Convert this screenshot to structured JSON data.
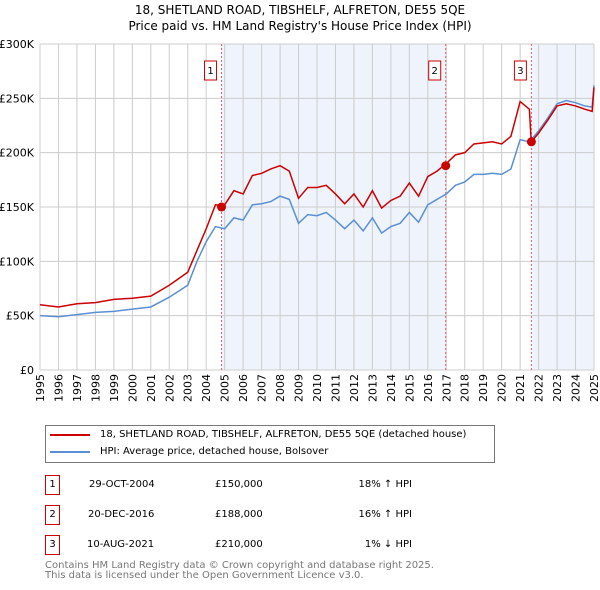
{
  "chart_data": {
    "type": "line",
    "title": "18, SHETLAND ROAD, TIBSHELF, ALFRETON, DE55 5QE",
    "subtitle": "Price paid vs. HM Land Registry's House Price Index (HPI)",
    "xlim": [
      1995,
      2025
    ],
    "ylim": [
      0,
      300000
    ],
    "yticks": [
      0,
      50000,
      100000,
      150000,
      200000,
      250000,
      300000
    ],
    "ytick_labels": [
      "£0",
      "£50K",
      "£100K",
      "£150K",
      "£200K",
      "£250K",
      "£300K"
    ],
    "xtick_labels": [
      "1995",
      "1996",
      "1997",
      "1998",
      "1999",
      "2000",
      "2001",
      "2002",
      "2003",
      "2004",
      "2005",
      "2006",
      "2007",
      "2008",
      "2009",
      "2010",
      "2011",
      "2012",
      "2013",
      "2014",
      "2015",
      "2016",
      "2017",
      "2018",
      "2019",
      "2020",
      "2021",
      "2022",
      "2023",
      "2024",
      "2025"
    ],
    "grid": true,
    "shaded_ranges": [
      [
        2004.83,
        2016.97
      ],
      [
        2021.61,
        2025
      ]
    ],
    "series": [
      {
        "name": "18, SHETLAND ROAD, TIBSHELF, ALFRETON, DE55 5QE (detached house)",
        "color": "#cc0000",
        "x": [
          1995,
          1996,
          1997,
          1998,
          1999,
          2000,
          2001,
          2002,
          2003,
          2003.5,
          2004,
          2004.5,
          2005,
          2005.5,
          2006,
          2006.5,
          2007,
          2007.5,
          2008,
          2008.5,
          2009,
          2009.5,
          2010,
          2010.5,
          2011,
          2011.5,
          2012,
          2012.5,
          2013,
          2013.5,
          2014,
          2014.5,
          2015,
          2015.5,
          2016,
          2016.5,
          2017,
          2017.5,
          2018,
          2018.5,
          2019,
          2019.5,
          2020,
          2020.5,
          2021,
          2021.5,
          2021.6,
          2022,
          2022.5,
          2023,
          2023.5,
          2024,
          2024.5,
          2024.9,
          2025
        ],
        "y": [
          60000,
          58000,
          61000,
          62000,
          65000,
          66000,
          68000,
          78000,
          90000,
          110000,
          130000,
          152000,
          152000,
          165000,
          162000,
          179000,
          181000,
          185000,
          188000,
          183000,
          158000,
          168000,
          168000,
          170000,
          162000,
          153000,
          162000,
          150000,
          165000,
          149000,
          156000,
          160000,
          172000,
          160000,
          178000,
          183000,
          190000,
          198000,
          200000,
          208000,
          209000,
          210000,
          208000,
          215000,
          247000,
          240000,
          210000,
          218000,
          230000,
          243000,
          245000,
          243000,
          240000,
          238000,
          260000
        ]
      },
      {
        "name": "HPI: Average price, detached house, Bolsover",
        "color": "#5b8fd4",
        "x": [
          1995,
          1996,
          1997,
          1998,
          1999,
          2000,
          2001,
          2002,
          2003,
          2003.5,
          2004,
          2004.5,
          2005,
          2005.5,
          2006,
          2006.5,
          2007,
          2007.5,
          2008,
          2008.5,
          2009,
          2009.5,
          2010,
          2010.5,
          2011,
          2011.5,
          2012,
          2012.5,
          2013,
          2013.5,
          2014,
          2014.5,
          2015,
          2015.5,
          2016,
          2016.5,
          2017,
          2017.5,
          2018,
          2018.5,
          2019,
          2019.5,
          2020,
          2020.5,
          2021,
          2021.5,
          2021.6,
          2022,
          2022.5,
          2023,
          2023.5,
          2024,
          2024.5,
          2024.9,
          2025
        ],
        "y": [
          50000,
          49000,
          51000,
          53000,
          54000,
          56000,
          58000,
          67000,
          78000,
          100000,
          118000,
          132000,
          130000,
          140000,
          138000,
          152000,
          153000,
          155000,
          160000,
          157000,
          135000,
          143000,
          142000,
          145000,
          138000,
          130000,
          138000,
          128000,
          140000,
          126000,
          132000,
          135000,
          145000,
          136000,
          152000,
          157000,
          162000,
          170000,
          173000,
          180000,
          180000,
          181000,
          180000,
          185000,
          212000,
          210000,
          212000,
          220000,
          232000,
          245000,
          248000,
          246000,
          243000,
          242000,
          262000
        ]
      }
    ],
    "sales": [
      {
        "label": "1",
        "x": 2004.83,
        "y": 150000,
        "date": "29-OCT-2004",
        "price": "£150,000",
        "hpi": "18% ↑ HPI"
      },
      {
        "label": "2",
        "x": 2016.97,
        "y": 188000,
        "date": "20-DEC-2016",
        "price": "£188,000",
        "hpi": "16% ↑ HPI"
      },
      {
        "label": "3",
        "x": 2021.61,
        "y": 210000,
        "date": "10-AUG-2021",
        "price": "£210,000",
        "hpi": "1% ↓ HPI"
      }
    ]
  },
  "footer": [
    "Contains HM Land Registry data © Crown copyright and database right 2025.",
    "This data is licensed under the Open Government Licence v3.0."
  ]
}
